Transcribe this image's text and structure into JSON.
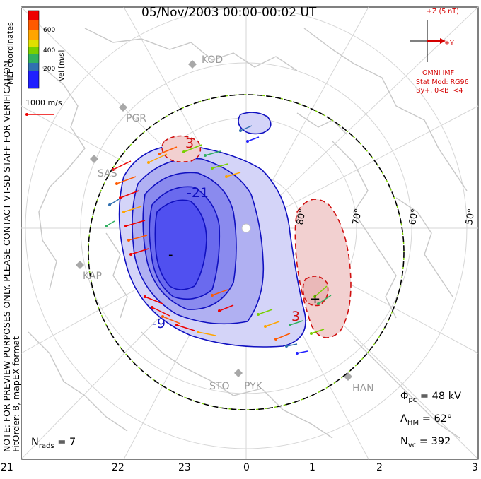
{
  "title": "05/Nov/2003 00:00-00:02 UT",
  "colorbar": {
    "label": "Vel [m/s]",
    "ticks": [
      "600",
      "400",
      "200"
    ],
    "colors": [
      "#ee0000",
      "#ff5a00",
      "#ffa500",
      "#e0e000",
      "#78d000",
      "#30b060",
      "#3070b0",
      "#2020ff"
    ]
  },
  "coord_label": "MLT coordinates",
  "velocity_scale": "1000 m/s",
  "note_lines": [
    "NOTE: FOR PREVIEW PURPOSES ONLY. PLEASE CONTACT VT-SD STAFF FOR VERIFICATION.",
    "FitOrder: 8,  mapEX format"
  ],
  "imf": {
    "z_label": "+Z (5 nT)",
    "y_label": "+Y",
    "source": "OMNI IMF",
    "model": "Stat Mod: RG96",
    "condition": "By+, 0<BT<4"
  },
  "stations": [
    "KOD",
    "PGR",
    "SAS",
    "KAP",
    "STO",
    "PYK",
    "HAN"
  ],
  "latitude_labels": [
    "80°",
    "70°",
    "60°",
    "50°"
  ],
  "contour_labels": [
    "-21",
    "-9",
    "3",
    "3",
    "-",
    "+"
  ],
  "stats": {
    "phi_pc_symbol": "Φ",
    "phi_pc_sub": "pc",
    "phi_pc_value": "= 48 kV",
    "lambda_symbol": "Λ",
    "lambda_sub": "HM",
    "lambda_value": "= 62°",
    "nvc_symbol": "N",
    "nvc_sub": "vc",
    "nvc_value": "= 392",
    "nrads_symbol": "N",
    "nrads_sub": "rads",
    "nrads_value": "= 7"
  },
  "mlt_ticks": [
    "21",
    "22",
    "23",
    "0",
    "1",
    "2",
    "3"
  ],
  "colors": {
    "negative_contour": "#1010c0",
    "negative_fill": "#4848f0",
    "positive_contour": "#d01010",
    "positive_fill": "#f2d0d0",
    "hmb_boundary": "#000000",
    "coast": "#c8c8c8",
    "imf_text": "#d40000"
  }
}
